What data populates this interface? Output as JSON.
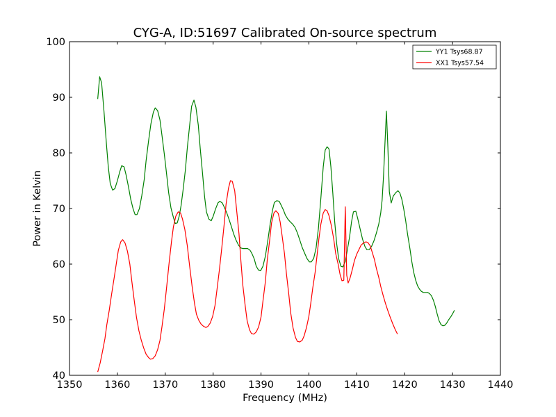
{
  "chart_data": {
    "type": "line",
    "title": "CYG-A, ID:51697 Calibrated On-source spectrum",
    "xlabel": "Frequency (MHz)",
    "ylabel": "Power in Kelvin",
    "xlim": [
      1350,
      1440
    ],
    "ylim": [
      40,
      100
    ],
    "xticks": [
      1350,
      1360,
      1370,
      1380,
      1390,
      1400,
      1410,
      1420,
      1430,
      1440
    ],
    "yticks": [
      40,
      50,
      60,
      70,
      80,
      90,
      100
    ],
    "grid": false,
    "legend_position": "top-right",
    "series": [
      {
        "name": "YY1 Tsys68.87",
        "color": "#008000",
        "points": [
          [
            1355.9,
            89.7
          ],
          [
            1356.3,
            93.7
          ],
          [
            1356.7,
            92.6
          ],
          [
            1357.2,
            87.5
          ],
          [
            1357.7,
            81.8
          ],
          [
            1358.1,
            77.5
          ],
          [
            1358.5,
            74.5
          ],
          [
            1359.0,
            73.3
          ],
          [
            1359.5,
            73.6
          ],
          [
            1360.0,
            75.0
          ],
          [
            1360.5,
            76.6
          ],
          [
            1360.9,
            77.7
          ],
          [
            1361.4,
            77.5
          ],
          [
            1361.8,
            76.1
          ],
          [
            1362.3,
            74.0
          ],
          [
            1362.8,
            71.6
          ],
          [
            1363.3,
            69.9
          ],
          [
            1363.7,
            68.9
          ],
          [
            1364.1,
            68.9
          ],
          [
            1364.6,
            70.0
          ],
          [
            1365.1,
            72.3
          ],
          [
            1365.6,
            75.2
          ],
          [
            1366.0,
            78.6
          ],
          [
            1366.5,
            82.1
          ],
          [
            1367.0,
            85.2
          ],
          [
            1367.5,
            87.3
          ],
          [
            1367.9,
            88.1
          ],
          [
            1368.4,
            87.6
          ],
          [
            1368.9,
            85.9
          ],
          [
            1369.3,
            83.2
          ],
          [
            1369.8,
            79.8
          ],
          [
            1370.3,
            76.1
          ],
          [
            1370.7,
            72.9
          ],
          [
            1371.2,
            70.1
          ],
          [
            1371.7,
            68.4
          ],
          [
            1372.1,
            67.3
          ],
          [
            1372.5,
            67.4
          ],
          [
            1372.9,
            68.6
          ],
          [
            1373.3,
            70.5
          ],
          [
            1373.7,
            73.2
          ],
          [
            1374.2,
            76.9
          ],
          [
            1374.6,
            80.9
          ],
          [
            1375.1,
            85.0
          ],
          [
            1375.5,
            88.4
          ],
          [
            1376.0,
            89.5
          ],
          [
            1376.4,
            88.2
          ],
          [
            1376.9,
            85.0
          ],
          [
            1377.3,
            80.8
          ],
          [
            1377.8,
            76.2
          ],
          [
            1378.2,
            72.2
          ],
          [
            1378.6,
            69.4
          ],
          [
            1379.1,
            68.1
          ],
          [
            1379.6,
            67.8
          ],
          [
            1380.0,
            68.6
          ],
          [
            1380.5,
            69.9
          ],
          [
            1381.0,
            71.0
          ],
          [
            1381.4,
            71.3
          ],
          [
            1381.9,
            71.0
          ],
          [
            1382.3,
            70.3
          ],
          [
            1382.8,
            69.3
          ],
          [
            1383.3,
            68.1
          ],
          [
            1383.8,
            66.8
          ],
          [
            1384.3,
            65.4
          ],
          [
            1384.8,
            64.3
          ],
          [
            1385.3,
            63.4
          ],
          [
            1385.8,
            62.9
          ],
          [
            1386.2,
            62.8
          ],
          [
            1386.7,
            62.8
          ],
          [
            1387.2,
            62.8
          ],
          [
            1387.7,
            62.5
          ],
          [
            1388.1,
            61.9
          ],
          [
            1388.6,
            60.9
          ],
          [
            1389.0,
            59.6
          ],
          [
            1389.5,
            58.9
          ],
          [
            1389.9,
            58.8
          ],
          [
            1390.4,
            59.6
          ],
          [
            1390.9,
            61.4
          ],
          [
            1391.4,
            64.1
          ],
          [
            1391.9,
            67.1
          ],
          [
            1392.4,
            69.7
          ],
          [
            1392.8,
            71.1
          ],
          [
            1393.3,
            71.4
          ],
          [
            1393.8,
            71.3
          ],
          [
            1394.2,
            70.6
          ],
          [
            1394.7,
            69.7
          ],
          [
            1395.1,
            68.8
          ],
          [
            1395.6,
            68.1
          ],
          [
            1396.1,
            67.6
          ],
          [
            1396.6,
            67.2
          ],
          [
            1397.1,
            66.6
          ],
          [
            1397.6,
            65.6
          ],
          [
            1398.1,
            64.3
          ],
          [
            1398.6,
            63.0
          ],
          [
            1399.1,
            62.0
          ],
          [
            1399.6,
            61.0
          ],
          [
            1400.1,
            60.4
          ],
          [
            1400.5,
            60.4
          ],
          [
            1401.0,
            61.0
          ],
          [
            1401.5,
            62.9
          ],
          [
            1402.0,
            66.5
          ],
          [
            1402.5,
            71.9
          ],
          [
            1403.0,
            77.5
          ],
          [
            1403.4,
            80.5
          ],
          [
            1403.8,
            81.1
          ],
          [
            1404.2,
            80.7
          ],
          [
            1404.6,
            77.5
          ],
          [
            1405.0,
            72.7
          ],
          [
            1405.4,
            67.6
          ],
          [
            1405.8,
            63.7
          ],
          [
            1406.2,
            61.0
          ],
          [
            1406.7,
            59.6
          ],
          [
            1407.1,
            59.5
          ],
          [
            1407.6,
            60.5
          ],
          [
            1408.0,
            62.4
          ],
          [
            1408.5,
            64.9
          ],
          [
            1408.9,
            67.6
          ],
          [
            1409.3,
            69.4
          ],
          [
            1409.8,
            69.5
          ],
          [
            1410.2,
            68.2
          ],
          [
            1410.7,
            66.3
          ],
          [
            1411.2,
            64.5
          ],
          [
            1411.7,
            63.2
          ],
          [
            1412.1,
            62.6
          ],
          [
            1412.6,
            62.6
          ],
          [
            1413.1,
            63.2
          ],
          [
            1413.6,
            64.2
          ],
          [
            1414.1,
            65.6
          ],
          [
            1414.6,
            67.2
          ],
          [
            1415.0,
            69.2
          ],
          [
            1415.3,
            71.5
          ],
          [
            1415.6,
            76.0
          ],
          [
            1415.9,
            82.0
          ],
          [
            1416.2,
            87.5
          ],
          [
            1416.5,
            81.0
          ],
          [
            1416.8,
            73.0
          ],
          [
            1417.2,
            71.0
          ],
          [
            1417.6,
            72.2
          ],
          [
            1418.1,
            72.8
          ],
          [
            1418.6,
            73.2
          ],
          [
            1419.0,
            72.8
          ],
          [
            1419.4,
            71.7
          ],
          [
            1419.8,
            70.0
          ],
          [
            1420.2,
            67.9
          ],
          [
            1420.6,
            65.4
          ],
          [
            1421.1,
            62.8
          ],
          [
            1421.5,
            60.4
          ],
          [
            1421.9,
            58.5
          ],
          [
            1422.3,
            57.1
          ],
          [
            1422.7,
            56.1
          ],
          [
            1423.1,
            55.5
          ],
          [
            1423.5,
            55.1
          ],
          [
            1423.9,
            54.9
          ],
          [
            1424.3,
            54.9
          ],
          [
            1424.8,
            54.9
          ],
          [
            1425.2,
            54.7
          ],
          [
            1425.6,
            54.3
          ],
          [
            1426.0,
            53.5
          ],
          [
            1426.4,
            52.4
          ],
          [
            1426.8,
            51.0
          ],
          [
            1427.2,
            49.8
          ],
          [
            1427.6,
            49.1
          ],
          [
            1428.0,
            48.9
          ],
          [
            1428.4,
            49.0
          ],
          [
            1428.8,
            49.4
          ],
          [
            1429.2,
            50.0
          ],
          [
            1429.7,
            50.6
          ],
          [
            1430.1,
            51.2
          ],
          [
            1430.4,
            51.7
          ]
        ]
      },
      {
        "name": "XX1 Tsys57.54",
        "color": "#ff0000",
        "points": [
          [
            1355.9,
            40.6
          ],
          [
            1356.4,
            42.2
          ],
          [
            1356.9,
            44.3
          ],
          [
            1357.4,
            46.6
          ],
          [
            1357.8,
            49.1
          ],
          [
            1358.3,
            51.7
          ],
          [
            1358.8,
            54.6
          ],
          [
            1359.3,
            57.4
          ],
          [
            1359.8,
            60.2
          ],
          [
            1360.2,
            62.5
          ],
          [
            1360.7,
            64.0
          ],
          [
            1361.1,
            64.4
          ],
          [
            1361.6,
            63.8
          ],
          [
            1362.1,
            62.3
          ],
          [
            1362.6,
            60.0
          ],
          [
            1363.0,
            57.0
          ],
          [
            1363.5,
            53.6
          ],
          [
            1364.0,
            50.4
          ],
          [
            1364.5,
            48.0
          ],
          [
            1365.0,
            46.3
          ],
          [
            1365.5,
            44.9
          ],
          [
            1366.0,
            43.8
          ],
          [
            1366.5,
            43.2
          ],
          [
            1366.9,
            42.9
          ],
          [
            1367.4,
            43.0
          ],
          [
            1367.9,
            43.5
          ],
          [
            1368.4,
            44.6
          ],
          [
            1368.9,
            46.3
          ],
          [
            1369.3,
            48.7
          ],
          [
            1369.8,
            51.9
          ],
          [
            1370.3,
            55.9
          ],
          [
            1370.8,
            60.2
          ],
          [
            1371.3,
            64.0
          ],
          [
            1371.7,
            66.7
          ],
          [
            1372.2,
            68.6
          ],
          [
            1372.7,
            69.4
          ],
          [
            1373.2,
            69.2
          ],
          [
            1373.6,
            68.1
          ],
          [
            1374.1,
            66.2
          ],
          [
            1374.6,
            63.3
          ],
          [
            1375.1,
            59.6
          ],
          [
            1375.6,
            56.0
          ],
          [
            1376.1,
            53.0
          ],
          [
            1376.5,
            51.0
          ],
          [
            1377.0,
            49.9
          ],
          [
            1377.5,
            49.2
          ],
          [
            1378.0,
            48.8
          ],
          [
            1378.5,
            48.6
          ],
          [
            1378.9,
            48.8
          ],
          [
            1379.4,
            49.4
          ],
          [
            1379.9,
            50.6
          ],
          [
            1380.4,
            52.6
          ],
          [
            1380.8,
            55.4
          ],
          [
            1381.3,
            58.9
          ],
          [
            1381.8,
            62.9
          ],
          [
            1382.3,
            67.1
          ],
          [
            1382.7,
            70.8
          ],
          [
            1383.2,
            73.6
          ],
          [
            1383.6,
            75.0
          ],
          [
            1384.0,
            74.9
          ],
          [
            1384.5,
            73.2
          ],
          [
            1384.9,
            69.8
          ],
          [
            1385.4,
            65.4
          ],
          [
            1385.8,
            60.6
          ],
          [
            1386.2,
            56.2
          ],
          [
            1386.7,
            52.5
          ],
          [
            1387.1,
            49.8
          ],
          [
            1387.6,
            48.2
          ],
          [
            1388.0,
            47.5
          ],
          [
            1388.5,
            47.4
          ],
          [
            1389.0,
            47.8
          ],
          [
            1389.5,
            48.7
          ],
          [
            1390.0,
            50.5
          ],
          [
            1390.4,
            53.3
          ],
          [
            1390.9,
            56.8
          ],
          [
            1391.3,
            60.7
          ],
          [
            1391.8,
            64.3
          ],
          [
            1392.2,
            67.4
          ],
          [
            1392.7,
            69.2
          ],
          [
            1393.1,
            69.6
          ],
          [
            1393.6,
            69.1
          ],
          [
            1394.0,
            67.6
          ],
          [
            1394.4,
            65.1
          ],
          [
            1394.9,
            61.9
          ],
          [
            1395.3,
            58.3
          ],
          [
            1395.8,
            54.6
          ],
          [
            1396.2,
            51.2
          ],
          [
            1396.7,
            48.5
          ],
          [
            1397.2,
            46.8
          ],
          [
            1397.6,
            46.1
          ],
          [
            1398.1,
            46.0
          ],
          [
            1398.6,
            46.3
          ],
          [
            1399.0,
            47.1
          ],
          [
            1399.5,
            48.6
          ],
          [
            1400.0,
            50.6
          ],
          [
            1400.4,
            53.0
          ],
          [
            1400.8,
            55.7
          ],
          [
            1401.3,
            58.5
          ],
          [
            1401.7,
            61.6
          ],
          [
            1402.1,
            64.6
          ],
          [
            1402.5,
            67.2
          ],
          [
            1403.0,
            69.2
          ],
          [
            1403.4,
            69.8
          ],
          [
            1403.8,
            69.6
          ],
          [
            1404.2,
            68.7
          ],
          [
            1404.7,
            66.9
          ],
          [
            1405.2,
            64.4
          ],
          [
            1405.6,
            61.9
          ],
          [
            1406.1,
            60.0
          ],
          [
            1406.5,
            58.2
          ],
          [
            1406.9,
            57.0
          ],
          [
            1407.3,
            57.1
          ],
          [
            1407.6,
            70.3
          ],
          [
            1407.9,
            58.0
          ],
          [
            1408.2,
            56.6
          ],
          [
            1408.6,
            57.5
          ],
          [
            1409.1,
            59.1
          ],
          [
            1409.5,
            60.6
          ],
          [
            1410.0,
            61.8
          ],
          [
            1410.5,
            62.7
          ],
          [
            1410.9,
            63.4
          ],
          [
            1411.4,
            63.8
          ],
          [
            1411.9,
            64.0
          ],
          [
            1412.3,
            63.9
          ],
          [
            1412.8,
            63.3
          ],
          [
            1413.2,
            62.2
          ],
          [
            1413.7,
            60.8
          ],
          [
            1414.1,
            59.2
          ],
          [
            1414.6,
            57.6
          ],
          [
            1415.0,
            56.0
          ],
          [
            1415.5,
            54.4
          ],
          [
            1416.0,
            52.9
          ],
          [
            1416.5,
            51.6
          ],
          [
            1417.0,
            50.4
          ],
          [
            1417.5,
            49.3
          ],
          [
            1418.0,
            48.3
          ],
          [
            1418.5,
            47.4
          ]
        ]
      }
    ]
  }
}
